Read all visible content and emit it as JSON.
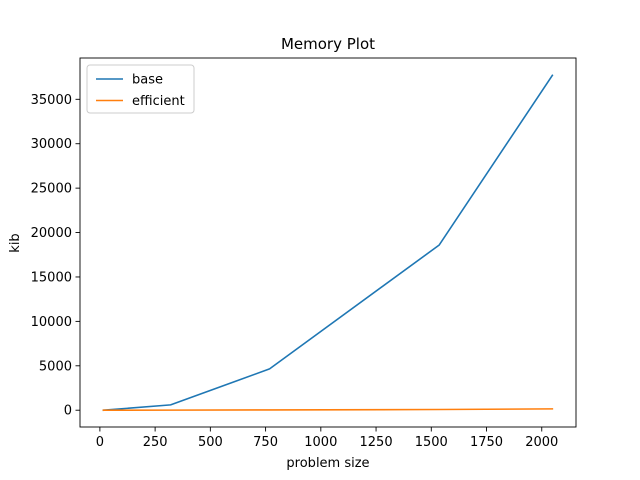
{
  "chart_data": {
    "type": "line",
    "title": "Memory Plot",
    "xlabel": "problem size",
    "ylabel": "kib",
    "xlim": [
      -90,
      2155
    ],
    "ylim": [
      -1890,
      39650
    ],
    "xticks": [
      0,
      250,
      500,
      750,
      1000,
      1250,
      1500,
      1750,
      2000
    ],
    "yticks": [
      0,
      5000,
      10000,
      15000,
      20000,
      25000,
      30000,
      35000
    ],
    "grid": false,
    "legend_position": "top-left",
    "series": [
      {
        "name": "base",
        "color": "#1f77b4",
        "x": [
          16,
          320,
          768,
          1536,
          2048
        ],
        "y": [
          0,
          600,
          4650,
          18600,
          37700
        ]
      },
      {
        "name": "efficient",
        "color": "#ff7f0e",
        "x": [
          16,
          320,
          768,
          1536,
          2048
        ],
        "y": [
          0,
          10,
          30,
          80,
          150
        ]
      }
    ]
  }
}
